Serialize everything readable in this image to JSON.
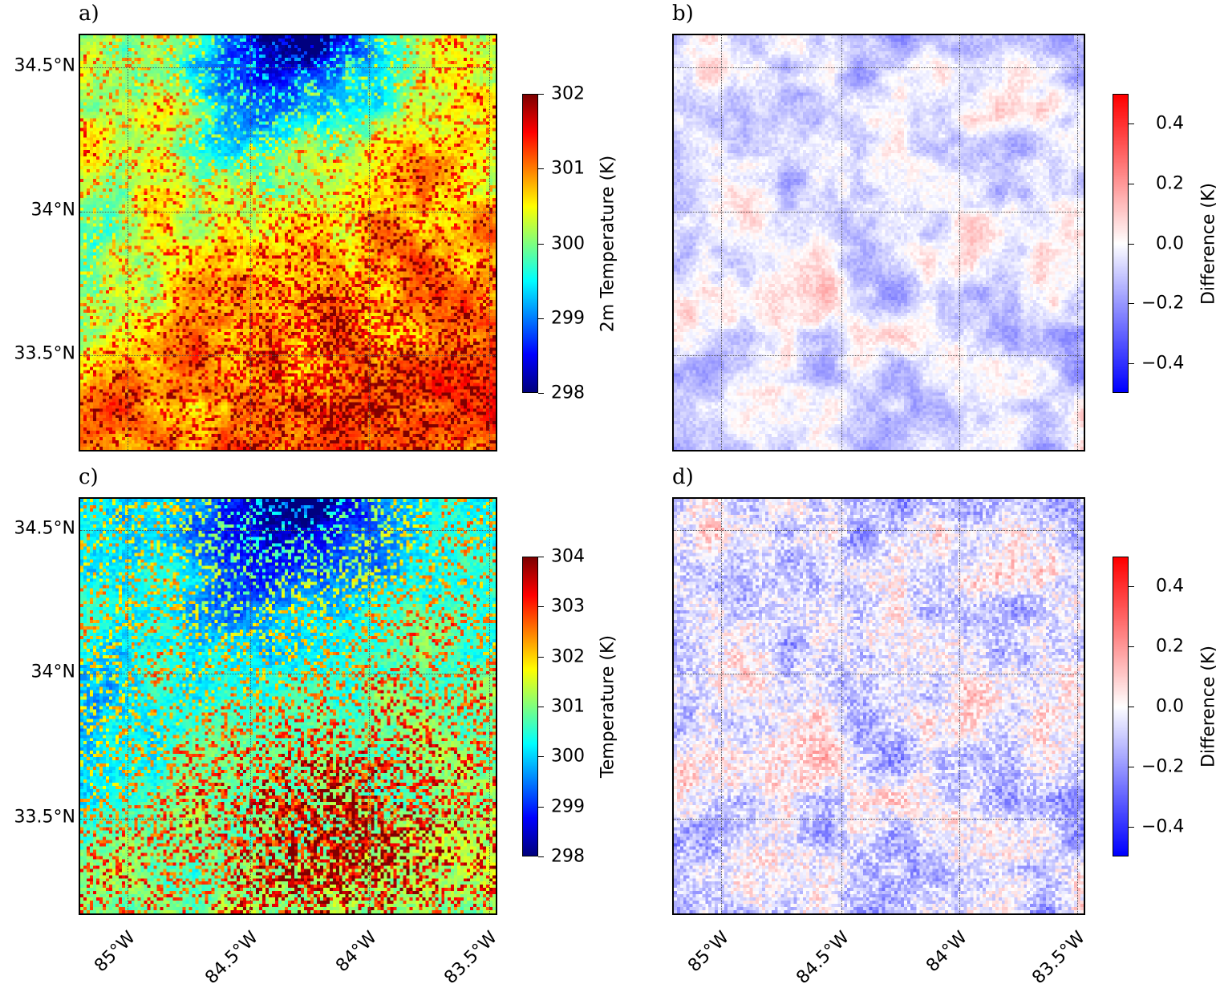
{
  "chart_data": [
    {
      "panel": "a)",
      "type": "heatmap",
      "colormap": "jet",
      "colorbar": {
        "label": "2m Temperature (K)",
        "range": [
          298,
          302
        ],
        "ticks": [
          "298",
          "299",
          "300",
          "301",
          "302"
        ]
      },
      "yticks": [
        "34.5°N",
        "34°N",
        "33.5°N"
      ],
      "xticks": [],
      "grid": true
    },
    {
      "panel": "b)",
      "type": "heatmap",
      "colormap": "bwr",
      "colorbar": {
        "label": "Difference (K)",
        "range": [
          -0.5,
          0.5
        ],
        "ticks": [
          "−0.4",
          "−0.2",
          "0.0",
          "0.2",
          "0.4"
        ],
        "tick_values": [
          -0.4,
          -0.2,
          0,
          0.2,
          0.4
        ]
      },
      "yticks": [],
      "xticks": [],
      "grid": true
    },
    {
      "panel": "c)",
      "type": "heatmap",
      "colormap": "jet",
      "colorbar": {
        "label": "Temperature (K)",
        "range": [
          298,
          304
        ],
        "ticks": [
          "298",
          "299",
          "300",
          "301",
          "302",
          "303",
          "304"
        ]
      },
      "yticks": [
        "34.5°N",
        "34°N",
        "33.5°N"
      ],
      "xticks": [
        "85°W",
        "84.5°W",
        "84°W",
        "83.5°W"
      ],
      "grid": true
    },
    {
      "panel": "d)",
      "type": "heatmap",
      "colormap": "bwr",
      "colorbar": {
        "label": "Difference (K)",
        "range": [
          -0.5,
          0.5
        ],
        "ticks": [
          "−0.4",
          "−0.2",
          "0.0",
          "0.2",
          "0.4"
        ],
        "tick_values": [
          -0.4,
          -0.2,
          0,
          0.2,
          0.4
        ]
      },
      "yticks": [],
      "xticks": [
        "85°W",
        "84.5°W",
        "84°W",
        "83.5°W"
      ],
      "grid": true
    }
  ]
}
